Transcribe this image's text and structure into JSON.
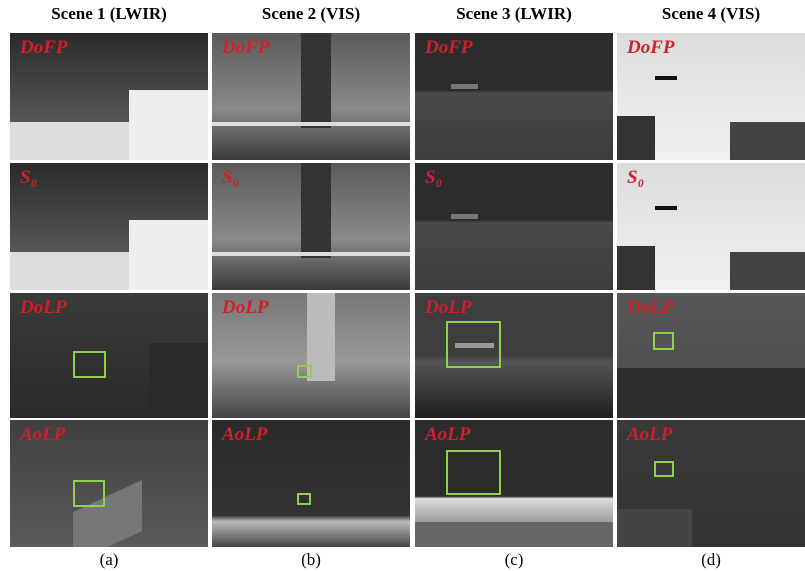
{
  "figure": {
    "columns": [
      {
        "title": "Scene 1 (LWIR)",
        "caption": "(a)"
      },
      {
        "title": "Scene 2 (VIS)",
        "caption": "(b)"
      },
      {
        "title": "Scene 3 (LWIR)",
        "caption": "(c)"
      },
      {
        "title": "Scene 4 (VIS)",
        "caption": "(d)"
      }
    ],
    "rows": [
      {
        "label": "DoFP"
      },
      {
        "label": "S₀"
      },
      {
        "label": "DoLP"
      },
      {
        "label": "AoLP"
      }
    ]
  }
}
